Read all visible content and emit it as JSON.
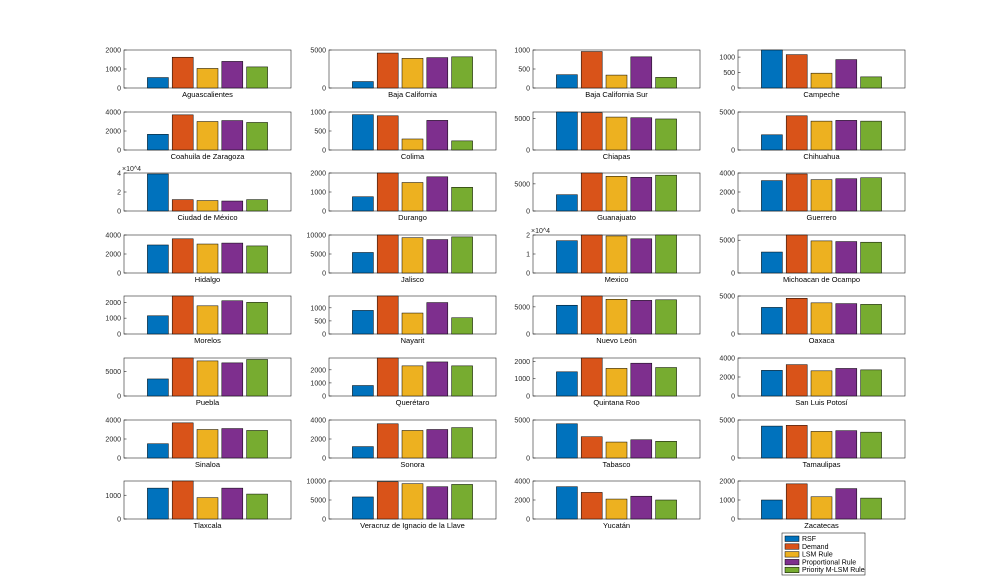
{
  "chart_data": {
    "type": "bar",
    "legend": {
      "placement": "bottom-right",
      "entries": [
        "RSF",
        "Demand",
        "LSM Rule",
        "Proportional Rule",
        "Priority M-LSM Rule"
      ]
    },
    "colors": [
      "#0072BD",
      "#D95319",
      "#EDB120",
      "#7E2F8E",
      "#77AC30"
    ],
    "panels": [
      {
        "name": "Aguascalientes",
        "values": [
          550,
          1620,
          1030,
          1400,
          1110
        ],
        "ylim": [
          0,
          2000
        ],
        "yticks": [
          "0",
          "1000",
          "2000"
        ]
      },
      {
        "name": "Baja California",
        "values": [
          850,
          4600,
          3900,
          4000,
          4100
        ],
        "ylim": [
          0,
          5000
        ],
        "yticks": [
          "0",
          "5000"
        ]
      },
      {
        "name": "Baja California Sur",
        "values": [
          350,
          960,
          340,
          820,
          280
        ],
        "ylim": [
          0,
          1000
        ],
        "yticks": [
          "0",
          "500",
          "1000"
        ]
      },
      {
        "name": "Campeche",
        "values": [
          1230,
          1080,
          480,
          920,
          360
        ],
        "ylim": [
          0,
          1230
        ],
        "yticks": [
          "0",
          "500",
          "1000"
        ]
      },
      {
        "name": "Coahuila de Zaragoza",
        "values": [
          1650,
          3700,
          3000,
          3100,
          2900
        ],
        "ylim": [
          0,
          4000
        ],
        "yticks": [
          "0",
          "2000",
          "4000"
        ]
      },
      {
        "name": "Colima",
        "values": [
          930,
          900,
          290,
          780,
          240
        ],
        "ylim": [
          0,
          1000
        ],
        "yticks": [
          "0",
          "500",
          "1000"
        ]
      },
      {
        "name": "Chiapas",
        "values": [
          6000,
          5900,
          5200,
          5100,
          4900
        ],
        "ylim": [
          0,
          6000
        ],
        "yticks": [
          "0",
          "5000"
        ]
      },
      {
        "name": "Chihuahua",
        "values": [
          2000,
          4500,
          3800,
          3900,
          3800
        ],
        "ylim": [
          0,
          5000
        ],
        "yticks": [
          "0",
          "5000"
        ]
      },
      {
        "name": "Ciudad de México",
        "values": [
          39000,
          12000,
          11000,
          10500,
          12000
        ],
        "ylim": [
          0,
          40000
        ],
        "yticks": [
          "0",
          "2",
          "4"
        ],
        "exponent": "×10^4"
      },
      {
        "name": "Durango",
        "values": [
          750,
          2100,
          1500,
          1800,
          1250
        ],
        "ylim": [
          0,
          2000
        ],
        "yticks": [
          "0",
          "1000",
          "2000"
        ]
      },
      {
        "name": "Guanajuato",
        "values": [
          3000,
          7000,
          6400,
          6200,
          6600
        ],
        "ylim": [
          0,
          7000
        ],
        "yticks": [
          "0",
          "5000"
        ]
      },
      {
        "name": "Guerrero",
        "values": [
          3200,
          3900,
          3300,
          3400,
          3500
        ],
        "ylim": [
          0,
          4000
        ],
        "yticks": [
          "0",
          "2000",
          "4000"
        ]
      },
      {
        "name": "Hidalgo",
        "values": [
          2950,
          3600,
          3050,
          3150,
          2850
        ],
        "ylim": [
          0,
          4000
        ],
        "yticks": [
          "0",
          "2000",
          "4000"
        ]
      },
      {
        "name": "Jalisco",
        "values": [
          5400,
          10000,
          9300,
          8800,
          9500
        ],
        "ylim": [
          0,
          10000
        ],
        "yticks": [
          "0",
          "5000",
          "10000"
        ]
      },
      {
        "name": "Mexico",
        "values": [
          17000,
          20000,
          19500,
          18000,
          20000
        ],
        "ylim": [
          0,
          20000
        ],
        "yticks": [
          "0",
          "1",
          "2"
        ],
        "exponent": "×10^4"
      },
      {
        "name": "Michoacan de Ocampo",
        "values": [
          3200,
          5800,
          4900,
          4800,
          4700
        ],
        "ylim": [
          0,
          5800
        ],
        "yticks": [
          "0",
          "5000"
        ]
      },
      {
        "name": "Morelos",
        "values": [
          1150,
          2400,
          1780,
          2100,
          2000
        ],
        "ylim": [
          0,
          2400
        ],
        "yticks": [
          "0",
          "1000",
          "2000"
        ]
      },
      {
        "name": "Nayarit",
        "values": [
          900,
          1450,
          800,
          1200,
          620
        ],
        "ylim": [
          0,
          1450
        ],
        "yticks": [
          "0",
          "500",
          "1000"
        ]
      },
      {
        "name": "Nuevo León",
        "values": [
          5300,
          7000,
          6400,
          6200,
          6300
        ],
        "ylim": [
          0,
          7000
        ],
        "yticks": [
          "0",
          "5000"
        ]
      },
      {
        "name": "Oaxaca",
        "values": [
          3500,
          4700,
          4100,
          4000,
          3900
        ],
        "ylim": [
          0,
          5000
        ],
        "yticks": [
          "0",
          "5000"
        ]
      },
      {
        "name": "Puebla",
        "values": [
          3500,
          7800,
          7200,
          6800,
          7500
        ],
        "ylim": [
          0,
          7800
        ],
        "yticks": [
          "0",
          "5000"
        ]
      },
      {
        "name": "Querétaro",
        "values": [
          800,
          2900,
          2300,
          2600,
          2300
        ],
        "ylim": [
          0,
          2900
        ],
        "yticks": [
          "0",
          "1000",
          "2000"
        ]
      },
      {
        "name": "Quintana Roo",
        "values": [
          1400,
          2200,
          1600,
          1900,
          1650
        ],
        "ylim": [
          0,
          2200
        ],
        "yticks": [
          "0",
          "1000",
          "2000"
        ]
      },
      {
        "name": "San Luis Potosí",
        "values": [
          2700,
          3300,
          2650,
          2900,
          2750
        ],
        "ylim": [
          0,
          4000
        ],
        "yticks": [
          "0",
          "2000",
          "4000"
        ]
      },
      {
        "name": "Sinaloa",
        "values": [
          1500,
          3700,
          3000,
          3100,
          2900
        ],
        "ylim": [
          0,
          4000
        ],
        "yticks": [
          "0",
          "2000",
          "4000"
        ]
      },
      {
        "name": "Sonora",
        "values": [
          1200,
          3600,
          2900,
          3000,
          3200
        ],
        "ylim": [
          0,
          4000
        ],
        "yticks": [
          "0",
          "2000",
          "4000"
        ]
      },
      {
        "name": "Tabasco",
        "values": [
          4500,
          2800,
          2100,
          2400,
          2200
        ],
        "ylim": [
          0,
          5000
        ],
        "yticks": [
          "0",
          "5000"
        ]
      },
      {
        "name": "Tamaulipas",
        "values": [
          4200,
          4300,
          3500,
          3600,
          3400
        ],
        "ylim": [
          0,
          5000
        ],
        "yticks": [
          "0",
          "5000"
        ]
      },
      {
        "name": "Tlaxcala",
        "values": [
          1300,
          1600,
          900,
          1300,
          1050
        ],
        "ylim": [
          0,
          1600
        ],
        "yticks": [
          "0",
          "1000"
        ]
      },
      {
        "name": "Veracruz de Ignacio de la Llave",
        "values": [
          5800,
          9800,
          9300,
          8500,
          9100
        ],
        "ylim": [
          0,
          10000
        ],
        "yticks": [
          "0",
          "5000",
          "10000"
        ]
      },
      {
        "name": "Yucatán",
        "values": [
          3400,
          2800,
          2100,
          2400,
          2000
        ],
        "ylim": [
          0,
          4000
        ],
        "yticks": [
          "0",
          "2000",
          "4000"
        ]
      },
      {
        "name": "Zacatecas",
        "values": [
          1000,
          1850,
          1170,
          1600,
          1100
        ],
        "ylim": [
          0,
          2000
        ],
        "yticks": [
          "0",
          "1000",
          "2000"
        ]
      }
    ]
  }
}
